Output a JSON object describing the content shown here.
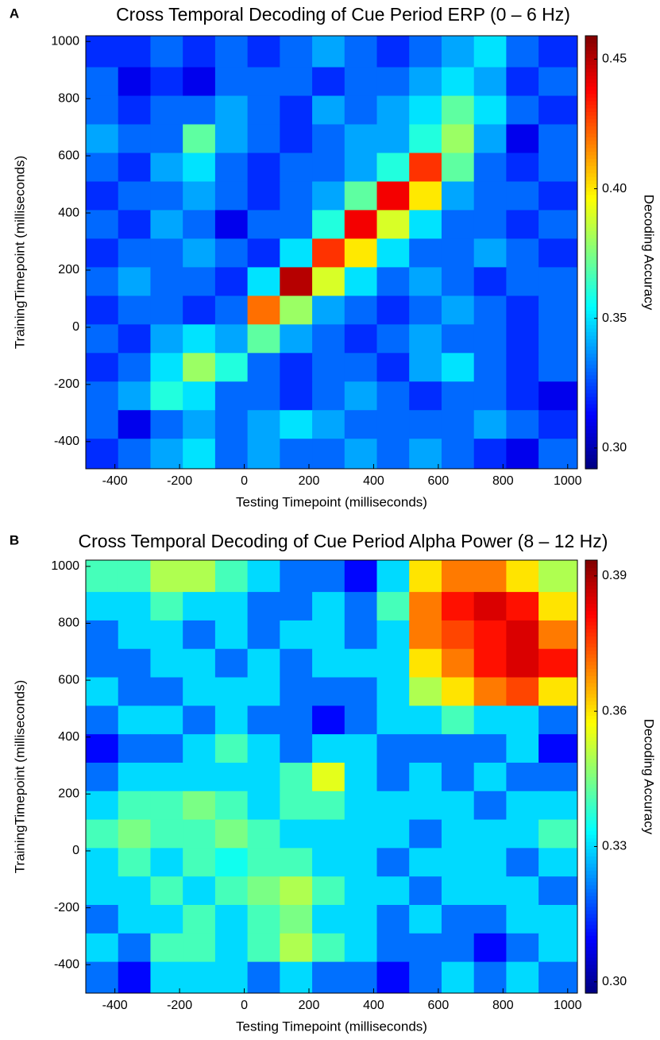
{
  "chart_data": [
    {
      "type": "heatmap",
      "panel_label": "A",
      "title": "Cross Temporal Decoding of Cue Period ERP (0 – 6 Hz)",
      "x_label": "Testing Timepoint (milliseconds)",
      "y_label": "TrainingTimepoint (milliseconds)",
      "colorbar_label": "Decoding Accuracy",
      "colormap": "jet",
      "x": [
        -440,
        -340,
        -240,
        -140,
        -40,
        60,
        160,
        260,
        360,
        460,
        560,
        660,
        760,
        860,
        960
      ],
      "y": [
        960,
        860,
        760,
        660,
        560,
        460,
        360,
        260,
        160,
        60,
        -40,
        -140,
        -240,
        -340,
        -440
      ],
      "z": [
        [
          0.32,
          0.32,
          0.33,
          0.32,
          0.33,
          0.32,
          0.33,
          0.34,
          0.33,
          0.32,
          0.33,
          0.34,
          0.35,
          0.33,
          0.32
        ],
        [
          0.33,
          0.31,
          0.32,
          0.31,
          0.33,
          0.33,
          0.33,
          0.32,
          0.33,
          0.33,
          0.34,
          0.35,
          0.34,
          0.32,
          0.33
        ],
        [
          0.33,
          0.32,
          0.33,
          0.33,
          0.34,
          0.33,
          0.32,
          0.34,
          0.33,
          0.34,
          0.35,
          0.37,
          0.35,
          0.33,
          0.32
        ],
        [
          0.34,
          0.33,
          0.33,
          0.37,
          0.34,
          0.33,
          0.32,
          0.33,
          0.34,
          0.34,
          0.36,
          0.38,
          0.34,
          0.31,
          0.33
        ],
        [
          0.33,
          0.32,
          0.34,
          0.35,
          0.33,
          0.32,
          0.33,
          0.33,
          0.34,
          0.36,
          0.43,
          0.37,
          0.33,
          0.32,
          0.33
        ],
        [
          0.32,
          0.33,
          0.33,
          0.34,
          0.33,
          0.32,
          0.33,
          0.34,
          0.37,
          0.44,
          0.4,
          0.34,
          0.33,
          0.33,
          0.32
        ],
        [
          0.33,
          0.32,
          0.34,
          0.33,
          0.31,
          0.33,
          0.33,
          0.36,
          0.44,
          0.39,
          0.35,
          0.33,
          0.33,
          0.32,
          0.33
        ],
        [
          0.32,
          0.33,
          0.33,
          0.34,
          0.33,
          0.32,
          0.35,
          0.43,
          0.4,
          0.35,
          0.33,
          0.33,
          0.34,
          0.33,
          0.32
        ],
        [
          0.33,
          0.34,
          0.33,
          0.33,
          0.32,
          0.35,
          0.45,
          0.39,
          0.35,
          0.33,
          0.34,
          0.33,
          0.32,
          0.33,
          0.33
        ],
        [
          0.32,
          0.33,
          0.33,
          0.32,
          0.33,
          0.42,
          0.38,
          0.34,
          0.33,
          0.32,
          0.33,
          0.34,
          0.33,
          0.32,
          0.33
        ],
        [
          0.33,
          0.32,
          0.34,
          0.35,
          0.34,
          0.37,
          0.34,
          0.33,
          0.32,
          0.33,
          0.34,
          0.33,
          0.33,
          0.32,
          0.33
        ],
        [
          0.32,
          0.33,
          0.35,
          0.38,
          0.36,
          0.33,
          0.32,
          0.33,
          0.33,
          0.32,
          0.34,
          0.35,
          0.33,
          0.32,
          0.33
        ],
        [
          0.33,
          0.34,
          0.36,
          0.35,
          0.33,
          0.33,
          0.32,
          0.33,
          0.34,
          0.33,
          0.32,
          0.33,
          0.33,
          0.32,
          0.31
        ],
        [
          0.33,
          0.31,
          0.33,
          0.34,
          0.33,
          0.34,
          0.35,
          0.34,
          0.33,
          0.33,
          0.33,
          0.33,
          0.34,
          0.33,
          0.32
        ],
        [
          0.32,
          0.33,
          0.34,
          0.35,
          0.33,
          0.34,
          0.33,
          0.33,
          0.34,
          0.33,
          0.34,
          0.33,
          0.32,
          0.31,
          0.33
        ]
      ],
      "xlim": [
        -490,
        1030
      ],
      "ylim": [
        -495,
        1020
      ],
      "xticks": [
        -400,
        -200,
        0,
        200,
        400,
        600,
        800,
        1000
      ],
      "yticks": [
        -400,
        -200,
        0,
        200,
        400,
        600,
        800,
        1000
      ],
      "clim": [
        0.292,
        0.459
      ],
      "cticks": [
        {
          "value": 0.3,
          "label": "0.30"
        },
        0.35,
        {
          "value": 0.4,
          "label": "0.40"
        },
        0.45
      ]
    },
    {
      "type": "heatmap",
      "panel_label": "B",
      "title": "Cross Temporal Decoding of Cue Period Alpha Power (8 – 12 Hz)",
      "x_label": "Testing Timepoint (milliseconds)",
      "y_label": "TrainingTimepoint (milliseconds)",
      "colorbar_label": "Decoding Accuracy",
      "colormap": "jet",
      "x": [
        -440,
        -340,
        -240,
        -140,
        -40,
        60,
        160,
        260,
        360,
        460,
        560,
        660,
        760,
        860,
        960
      ],
      "y": [
        960,
        860,
        760,
        660,
        560,
        460,
        360,
        260,
        160,
        60,
        -40,
        -140,
        -240,
        -340,
        -440
      ],
      "z": [
        [
          0.34,
          0.34,
          0.35,
          0.35,
          0.34,
          0.33,
          0.32,
          0.32,
          0.31,
          0.33,
          0.36,
          0.37,
          0.37,
          0.36,
          0.35
        ],
        [
          0.33,
          0.33,
          0.34,
          0.33,
          0.33,
          0.32,
          0.32,
          0.33,
          0.32,
          0.34,
          0.37,
          0.38,
          0.385,
          0.38,
          0.36
        ],
        [
          0.32,
          0.33,
          0.33,
          0.32,
          0.33,
          0.32,
          0.33,
          0.33,
          0.32,
          0.33,
          0.37,
          0.375,
          0.38,
          0.385,
          0.37
        ],
        [
          0.32,
          0.32,
          0.33,
          0.33,
          0.32,
          0.33,
          0.32,
          0.33,
          0.33,
          0.33,
          0.36,
          0.37,
          0.38,
          0.385,
          0.38
        ],
        [
          0.33,
          0.32,
          0.32,
          0.33,
          0.33,
          0.33,
          0.32,
          0.32,
          0.32,
          0.33,
          0.35,
          0.36,
          0.37,
          0.375,
          0.36
        ],
        [
          0.32,
          0.33,
          0.33,
          0.32,
          0.33,
          0.32,
          0.32,
          0.31,
          0.32,
          0.33,
          0.33,
          0.34,
          0.33,
          0.33,
          0.32
        ],
        [
          0.31,
          0.32,
          0.32,
          0.33,
          0.34,
          0.33,
          0.32,
          0.33,
          0.33,
          0.32,
          0.32,
          0.32,
          0.32,
          0.33,
          0.31
        ],
        [
          0.32,
          0.33,
          0.33,
          0.33,
          0.33,
          0.33,
          0.34,
          0.355,
          0.33,
          0.32,
          0.33,
          0.32,
          0.33,
          0.32,
          0.32
        ],
        [
          0.33,
          0.34,
          0.34,
          0.345,
          0.34,
          0.33,
          0.34,
          0.34,
          0.33,
          0.33,
          0.33,
          0.33,
          0.32,
          0.33,
          0.33
        ],
        [
          0.34,
          0.345,
          0.34,
          0.34,
          0.345,
          0.34,
          0.33,
          0.33,
          0.33,
          0.33,
          0.32,
          0.33,
          0.33,
          0.33,
          0.34
        ],
        [
          0.33,
          0.34,
          0.33,
          0.34,
          0.335,
          0.34,
          0.34,
          0.33,
          0.33,
          0.32,
          0.33,
          0.33,
          0.33,
          0.32,
          0.33
        ],
        [
          0.33,
          0.33,
          0.34,
          0.33,
          0.34,
          0.345,
          0.35,
          0.34,
          0.33,
          0.33,
          0.32,
          0.33,
          0.33,
          0.33,
          0.32
        ],
        [
          0.32,
          0.33,
          0.33,
          0.34,
          0.33,
          0.34,
          0.345,
          0.33,
          0.33,
          0.32,
          0.33,
          0.32,
          0.32,
          0.33,
          0.33
        ],
        [
          0.33,
          0.32,
          0.34,
          0.34,
          0.33,
          0.34,
          0.35,
          0.34,
          0.33,
          0.32,
          0.32,
          0.32,
          0.31,
          0.32,
          0.33
        ],
        [
          0.32,
          0.31,
          0.33,
          0.33,
          0.33,
          0.32,
          0.33,
          0.32,
          0.32,
          0.31,
          0.32,
          0.33,
          0.32,
          0.33,
          0.32
        ]
      ],
      "xlim": [
        -490,
        1030
      ],
      "ylim": [
        -500,
        1022
      ],
      "xticks": [
        -400,
        -200,
        0,
        200,
        400,
        600,
        800,
        1000
      ],
      "yticks": [
        -400,
        -200,
        0,
        200,
        400,
        600,
        800,
        1000
      ],
      "clim": [
        0.2975,
        0.3935
      ],
      "cticks": [
        {
          "value": 0.3,
          "label": "0.30"
        },
        0.33,
        0.36,
        0.39
      ]
    }
  ]
}
